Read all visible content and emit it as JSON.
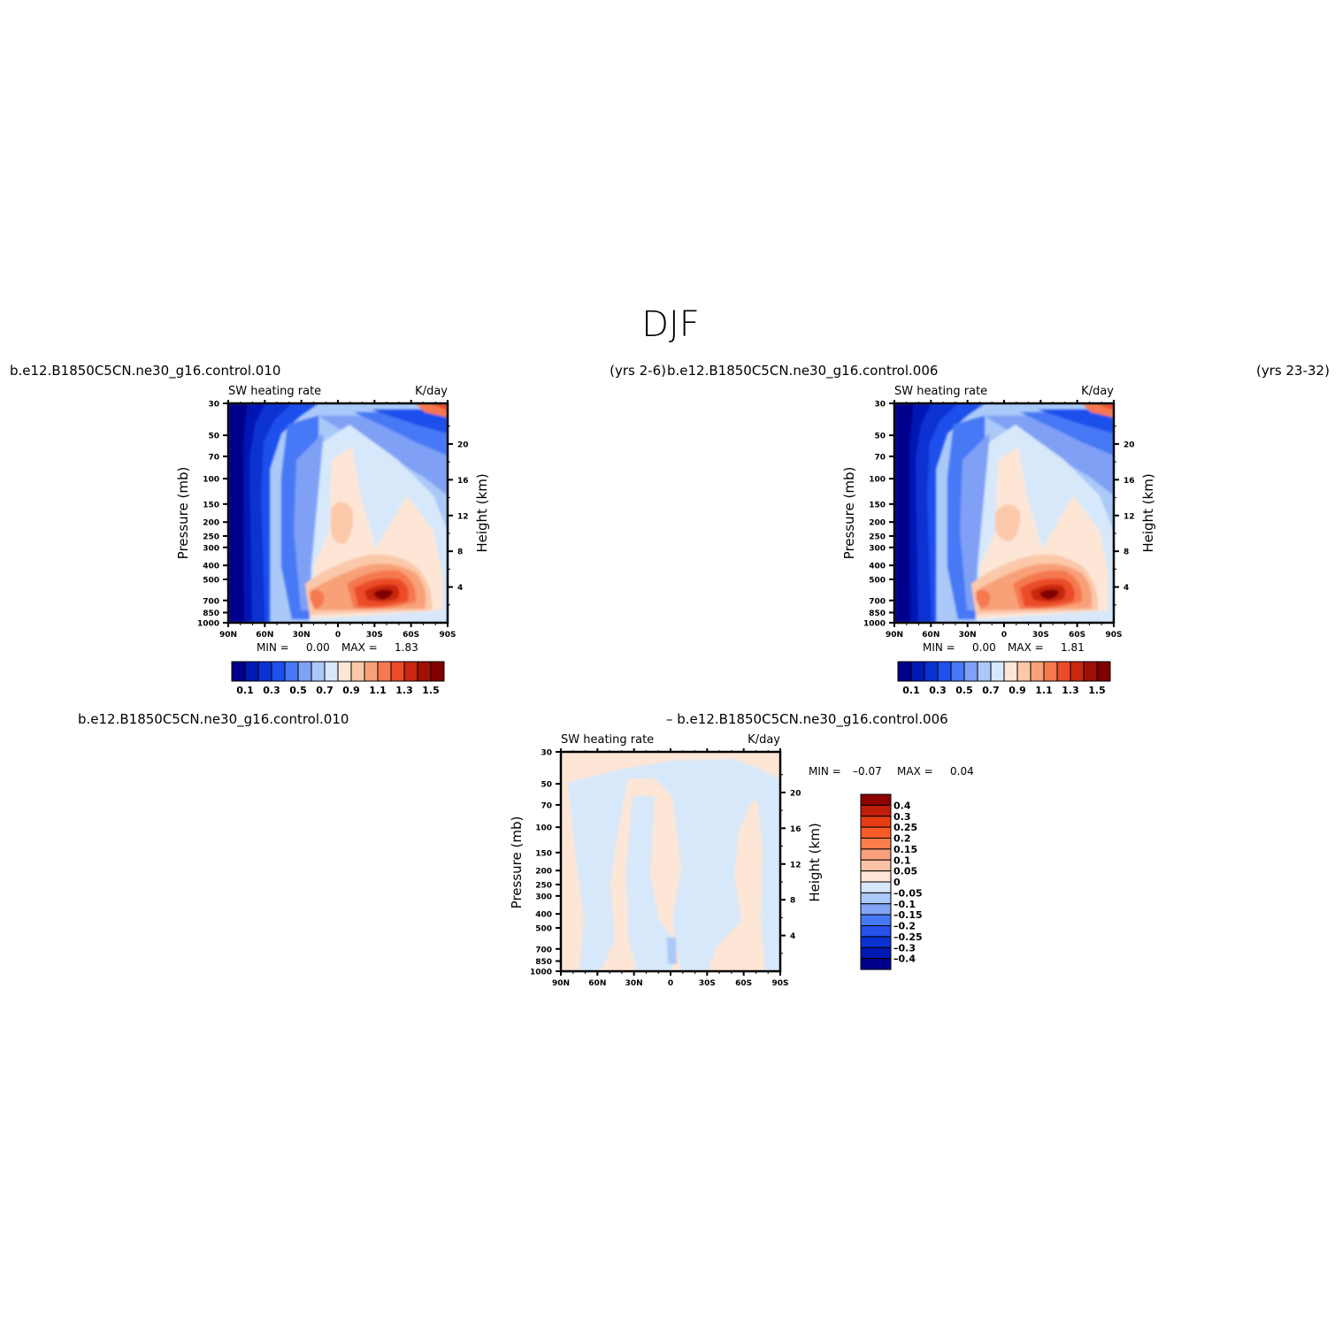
{
  "figure": {
    "title": "DJF"
  },
  "chart_data": [
    {
      "type": "heatmap",
      "case_label": "b.e12.B1850C5CN.ne30_g16.control.010",
      "years_label": "(yrs 2-6)",
      "variable_label": "SW heating rate",
      "units_label": "K/day",
      "ylabel": "Pressure (mb)",
      "y2label": "Height (km)",
      "x_ticks": [
        "90N",
        "60N",
        "30N",
        "0",
        "30S",
        "60S",
        "90S"
      ],
      "y_ticks": [
        "30",
        "50",
        "70",
        "100",
        "150",
        "200",
        "250",
        "300",
        "400",
        "500",
        "700",
        "850",
        "1000"
      ],
      "y2_ticks": [
        "20",
        "16",
        "12",
        "8",
        "4"
      ],
      "min_label": "MIN =",
      "min_value": "0.00",
      "max_label": "MAX =",
      "max_value": "1.83",
      "colorbar_labels": [
        "0.1",
        "0.3",
        "0.5",
        "0.7",
        "0.9",
        "1.1",
        "1.3",
        "1.5"
      ]
    },
    {
      "type": "heatmap",
      "case_label": "b.e12.B1850C5CN.ne30_g16.control.006",
      "years_label": "(yrs 23-32)",
      "variable_label": "SW heating rate",
      "units_label": "K/day",
      "ylabel": "Pressure (mb)",
      "y2label": "Height (km)",
      "x_ticks": [
        "90N",
        "60N",
        "30N",
        "0",
        "30S",
        "60S",
        "90S"
      ],
      "y_ticks": [
        "30",
        "50",
        "70",
        "100",
        "150",
        "200",
        "250",
        "300",
        "400",
        "500",
        "700",
        "850",
        "1000"
      ],
      "y2_ticks": [
        "20",
        "16",
        "12",
        "8",
        "4"
      ],
      "min_label": "MIN =",
      "min_value": "0.00",
      "max_label": "MAX =",
      "max_value": "1.81",
      "colorbar_labels": [
        "0.1",
        "0.3",
        "0.5",
        "0.7",
        "0.9",
        "1.1",
        "1.3",
        "1.5"
      ]
    },
    {
      "type": "heatmap",
      "case_label_left": "b.e12.B1850C5CN.ne30_g16.control.010",
      "case_label_right": "– b.e12.B1850C5CN.ne30_g16.control.006",
      "variable_label": "SW heating rate",
      "units_label": "K/day",
      "ylabel": "Pressure (mb)",
      "y2label": "Height (km)",
      "x_ticks": [
        "90N",
        "60N",
        "30N",
        "0",
        "30S",
        "60S",
        "90S"
      ],
      "y_ticks": [
        "30",
        "50",
        "70",
        "100",
        "150",
        "200",
        "250",
        "300",
        "400",
        "500",
        "700",
        "850",
        "1000"
      ],
      "y2_ticks": [
        "20",
        "16",
        "12",
        "8",
        "4"
      ],
      "min_label": "MIN =",
      "min_value": "–0.07",
      "max_label": "MAX =",
      "max_value": "0.04",
      "colorbar_labels": [
        "0.4",
        "0.3",
        "0.25",
        "0.2",
        "0.15",
        "0.1",
        "0.05",
        "0",
        "–0.05",
        "–0.1",
        "–0.15",
        "–0.2",
        "–0.25",
        "–0.3",
        "–0.4"
      ]
    }
  ],
  "colors": {
    "seq": [
      "#00008c",
      "#0018b4",
      "#0a32d2",
      "#1e50eb",
      "#4678f5",
      "#7fa0f5",
      "#aac8f8",
      "#d6e8fa",
      "#fde6d6",
      "#fbc8aa",
      "#f8a078",
      "#f57850",
      "#eb4b28",
      "#c8280f",
      "#a01005",
      "#800000"
    ],
    "diff": [
      "#8c0000",
      "#be1e0a",
      "#e63c14",
      "#fa5a28",
      "#fa7d4b",
      "#f8a07d",
      "#fbc3a5",
      "#fde6d6",
      "#d6e8fa",
      "#aac8f8",
      "#82a5f5",
      "#4678f5",
      "#2850eb",
      "#0a32d2",
      "#0018b4",
      "#00008c"
    ]
  }
}
